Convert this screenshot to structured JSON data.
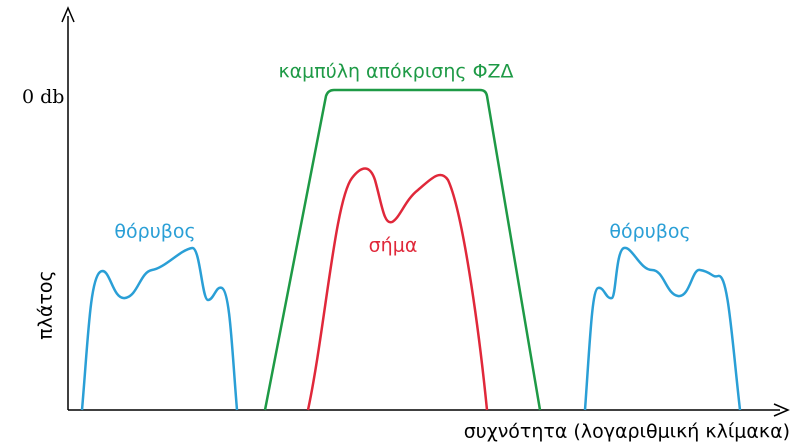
{
  "level_label": "0 db",
  "filter_label": "καμπύλη απόκρισης ΦΖΔ",
  "noise_labels": [
    "θόρυβος",
    "θόρυβος"
  ],
  "signal_label": "σήμα",
  "y_axis_label": "πλάτος",
  "x_axis_label": "συχνότητα (λογαριθμική κλίμακα)"
}
